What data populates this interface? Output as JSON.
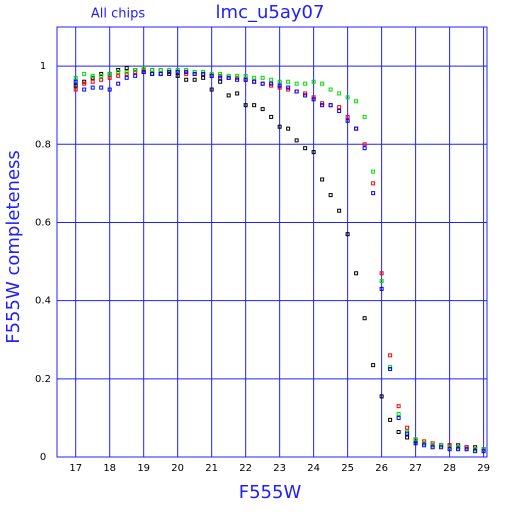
{
  "chart_data": {
    "type": "scatter",
    "title": "lmc_u5ay07",
    "subtitle": "All chips",
    "x_label": "F555W",
    "y_label": "F555W completeness",
    "x": [
      17,
      17.25,
      17.5,
      17.75,
      18,
      18.25,
      18.5,
      18.75,
      19,
      19.25,
      19.5,
      19.75,
      20,
      20.25,
      20.5,
      20.75,
      21,
      21.25,
      21.5,
      21.75,
      22,
      22.25,
      22.5,
      22.75,
      23,
      23.25,
      23.5,
      23.75,
      24,
      24.25,
      24.5,
      24.75,
      25,
      25.25,
      25.5,
      25.75,
      26,
      26.25,
      26.5,
      26.75,
      27,
      27.25,
      27.5,
      27.75,
      28,
      28.25,
      28.5,
      28.75,
      29
    ],
    "series": [
      {
        "color": "#000000",
        "values": [
          0.95,
          0.96,
          0.97,
          0.98,
          0.98,
          0.99,
          0.995,
          0.99,
          0.985,
          0.98,
          0.98,
          0.98,
          0.975,
          0.965,
          0.965,
          0.97,
          0.94,
          0.96,
          0.925,
          0.93,
          0.9,
          0.9,
          0.89,
          0.87,
          0.845,
          0.84,
          0.81,
          0.79,
          0.78,
          0.71,
          0.67,
          0.63,
          0.57,
          0.47,
          0.355,
          0.235,
          0.155,
          0.095,
          0.064,
          0.05,
          0.04,
          0.035,
          0.03,
          0.03,
          0.03,
          0.03,
          0.025,
          0.025,
          0.02
        ]
      },
      {
        "color": "#ff0000",
        "values": [
          0.94,
          0.955,
          0.96,
          0.965,
          0.97,
          0.975,
          0.98,
          0.985,
          0.99,
          0.99,
          0.99,
          0.985,
          0.985,
          0.98,
          0.98,
          0.98,
          0.975,
          0.975,
          0.97,
          0.97,
          0.965,
          0.96,
          0.955,
          0.95,
          0.945,
          0.94,
          0.935,
          0.93,
          0.92,
          0.905,
          0.9,
          0.895,
          0.87,
          0.84,
          0.8,
          0.7,
          0.47,
          0.26,
          0.13,
          0.075,
          0.045,
          0.04,
          0.035,
          0.03,
          0.03,
          0.025,
          0.025,
          0.02,
          0.02
        ]
      },
      {
        "color": "#00dd00",
        "values": [
          0.97,
          0.98,
          0.975,
          0.975,
          0.98,
          0.985,
          0.985,
          0.99,
          0.995,
          0.99,
          0.99,
          0.99,
          0.99,
          0.99,
          0.985,
          0.985,
          0.98,
          0.98,
          0.975,
          0.975,
          0.975,
          0.97,
          0.97,
          0.965,
          0.96,
          0.96,
          0.955,
          0.955,
          0.96,
          0.955,
          0.94,
          0.93,
          0.92,
          0.91,
          0.87,
          0.73,
          0.45,
          0.23,
          0.11,
          0.065,
          0.045,
          0.035,
          0.03,
          0.03,
          0.025,
          0.025,
          0.02,
          0.02,
          0.02
        ]
      },
      {
        "color": "#0000ff",
        "values": [
          0.96,
          0.94,
          0.945,
          0.945,
          0.94,
          0.955,
          0.97,
          0.975,
          0.985,
          0.98,
          0.98,
          0.985,
          0.985,
          0.985,
          0.98,
          0.98,
          0.975,
          0.97,
          0.97,
          0.965,
          0.965,
          0.96,
          0.955,
          0.955,
          0.95,
          0.945,
          0.935,
          0.925,
          0.915,
          0.9,
          0.9,
          0.885,
          0.86,
          0.84,
          0.79,
          0.675,
          0.43,
          0.225,
          0.1,
          0.06,
          0.035,
          0.03,
          0.025,
          0.025,
          0.02,
          0.02,
          0.02,
          0.015,
          0.015
        ]
      }
    ],
    "xlim": [
      16.45,
      29.1
    ],
    "ylim": [
      0,
      1.1
    ],
    "xticks": [
      17,
      18,
      19,
      20,
      21,
      22,
      23,
      24,
      25,
      26,
      27,
      28,
      29
    ],
    "yticks": [
      0,
      0.2,
      0.4,
      0.6,
      0.8,
      1
    ],
    "grid": true,
    "grid_color": "#2020ff"
  }
}
